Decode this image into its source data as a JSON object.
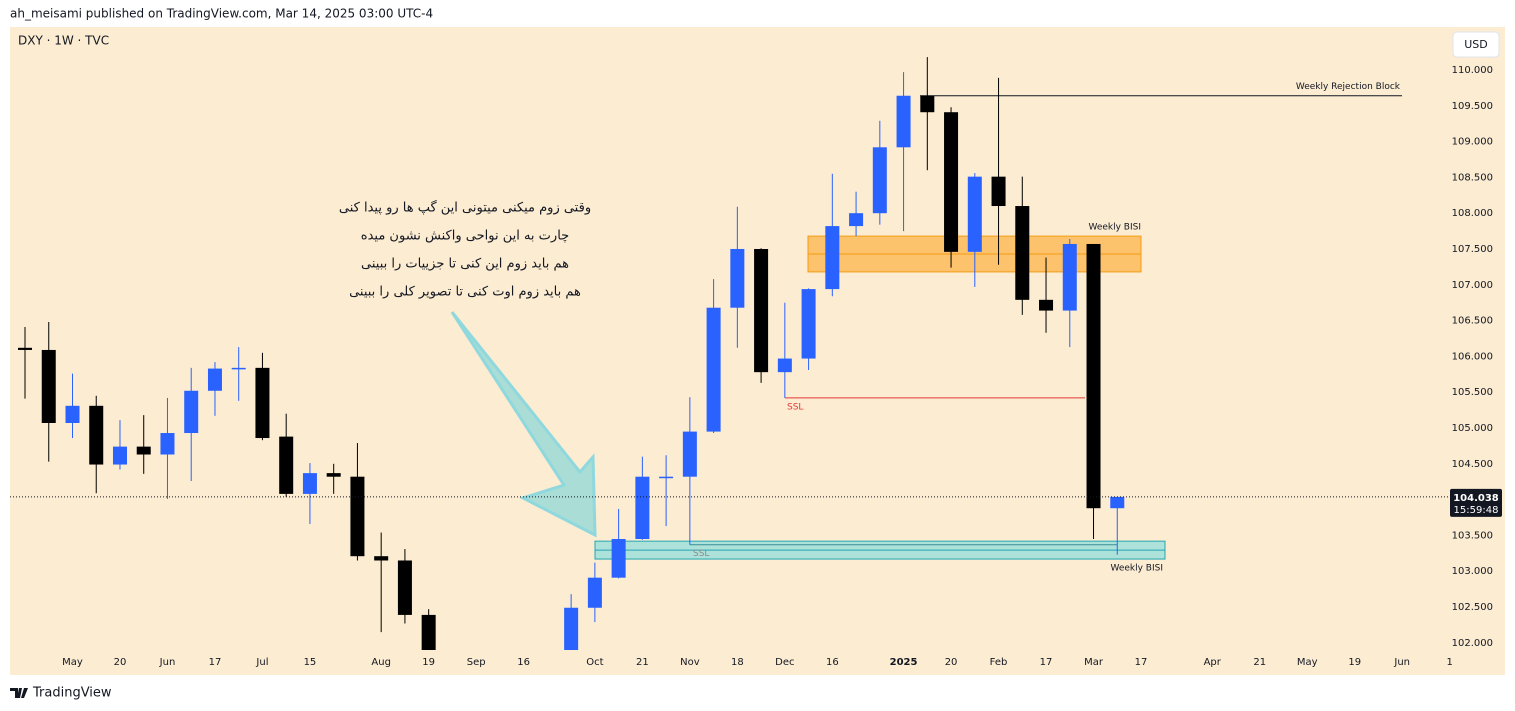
{
  "header": {
    "publisher": "ah_meisami published on TradingView.com, Mar 14, 2025 03:00 UTC-4",
    "symbol": "DXY · 1W · TVC",
    "currency": "USD",
    "brand": "TradingView"
  },
  "chart_data": {
    "type": "candlestick",
    "categories": [
      null,
      null,
      "May",
      null,
      "20",
      null,
      "Jun",
      null,
      "17",
      null,
      "Jul",
      null,
      "15",
      null,
      null,
      "Aug",
      null,
      "19",
      null,
      "Sep",
      null,
      "16",
      null,
      null,
      "Oct",
      null,
      "21",
      null,
      "Nov",
      null,
      "18",
      null,
      "Dec",
      null,
      "16",
      null,
      null,
      "2025",
      null,
      "20",
      null,
      "Feb",
      null,
      "17",
      null,
      "Mar",
      null,
      "17",
      null,
      null,
      "Apr",
      null,
      "21",
      null,
      "May",
      null,
      "19",
      null,
      "Jun",
      null,
      "1"
    ],
    "open": [
      106.12,
      106.09,
      105.07,
      105.31,
      104.49,
      104.74,
      104.63,
      104.93,
      105.52,
      105.83,
      105.84,
      104.88,
      104.08,
      104.37,
      104.32,
      103.21,
      103.15,
      102.39,
      null,
      null,
      null,
      null,
      null,
      101.73,
      102.49,
      102.91,
      103.45,
      104.3,
      104.32,
      104.95,
      106.68,
      107.5,
      105.78,
      105.97,
      106.94,
      107.82,
      108.0,
      108.92,
      109.64,
      109.41,
      107.46,
      108.51,
      108.1,
      106.79,
      106.64,
      107.57,
      103.88,
      null,
      null,
      null,
      null,
      null,
      null,
      null,
      null,
      null,
      null,
      null,
      null,
      null,
      null
    ],
    "high": [
      106.41,
      106.48,
      105.76,
      105.45,
      105.11,
      105.18,
      105.42,
      105.84,
      105.92,
      106.13,
      106.05,
      105.2,
      104.51,
      104.5,
      104.79,
      103.54,
      103.31,
      102.47,
      null,
      null,
      null,
      null,
      null,
      102.68,
      103.12,
      103.87,
      104.6,
      104.62,
      105.43,
      107.08,
      108.09,
      107.51,
      106.75,
      106.95,
      108.55,
      108.3,
      109.29,
      109.97,
      110.18,
      109.48,
      108.56,
      109.89,
      108.51,
      107.38,
      107.64,
      107.57,
      104.04,
      null,
      null,
      null,
      null,
      null,
      null,
      null,
      null,
      null,
      null,
      null,
      null,
      null,
      null
    ],
    "low": [
      105.41,
      104.53,
      104.86,
      104.09,
      104.42,
      104.36,
      104.01,
      104.26,
      105.17,
      105.38,
      104.83,
      104.04,
      103.66,
      104.08,
      103.15,
      102.15,
      102.27,
      101.6,
      null,
      null,
      null,
      null,
      null,
      101.5,
      102.29,
      102.9,
      103.44,
      103.63,
      103.37,
      104.93,
      106.12,
      105.63,
      105.42,
      105.81,
      106.84,
      107.68,
      107.84,
      107.75,
      108.6,
      107.24,
      106.97,
      107.28,
      106.58,
      106.33,
      106.13,
      103.45,
      103.23,
      null,
      null,
      null,
      null,
      null,
      null,
      null,
      null,
      null,
      null,
      null,
      null,
      null,
      null
    ],
    "close": [
      106.09,
      105.07,
      105.31,
      104.49,
      104.74,
      104.63,
      104.93,
      105.52,
      105.83,
      105.84,
      104.86,
      104.08,
      104.37,
      104.32,
      103.21,
      103.15,
      102.39,
      101.8,
      null,
      null,
      null,
      null,
      null,
      102.49,
      102.91,
      103.45,
      104.32,
      104.32,
      104.95,
      106.68,
      107.5,
      105.78,
      105.97,
      106.94,
      107.82,
      108.0,
      108.92,
      109.64,
      109.41,
      107.46,
      108.51,
      108.1,
      106.79,
      106.64,
      107.57,
      103.88,
      104.038,
      null,
      null,
      null,
      null,
      null,
      null,
      null,
      null,
      null,
      null,
      null,
      null,
      null,
      null
    ],
    "colors": {
      "up": "#2962ff",
      "down": "#000000"
    },
    "ylim": [
      101.9,
      110.6
    ],
    "yticks": [
      {
        "value": 102,
        "label": "102.000"
      },
      {
        "value": 102.5,
        "label": "102.500"
      },
      {
        "value": 103,
        "label": "103.000"
      },
      {
        "value": 103.5,
        "label": "103.500"
      },
      {
        "value": 104,
        "label": "104.000"
      },
      {
        "value": 104.5,
        "label": "104.500"
      },
      {
        "value": 105,
        "label": "105.000"
      },
      {
        "value": 105.5,
        "label": "105.500"
      },
      {
        "value": 106,
        "label": "106.000"
      },
      {
        "value": 106.5,
        "label": "106.500"
      },
      {
        "value": 107,
        "label": "107.000"
      },
      {
        "value": 107.5,
        "label": "107.500"
      },
      {
        "value": 108,
        "label": "108.000"
      },
      {
        "value": 108.5,
        "label": "108.500"
      },
      {
        "value": 109,
        "label": "109.000"
      },
      {
        "value": 109.5,
        "label": "109.500"
      },
      {
        "value": 110,
        "label": "110.000"
      }
    ],
    "countdown": "15:59:48",
    "annotations": {
      "rejection_block": {
        "text": "Weekly Rejection Block",
        "price": 109.64
      },
      "bisi_upper": {
        "text": "Weekly BISI",
        "top": 107.68,
        "bottom": 107.18
      },
      "bisi_lower": {
        "text": "Weekly BISI",
        "top": 103.42,
        "bottom": 103.17
      },
      "ssl_red": {
        "text": "SSL",
        "price": 105.42
      },
      "ssl_grey": {
        "text": "SSL",
        "price": 103.37
      },
      "note": [
        "وقتی زوم میکنی میتونی این گپ ها رو پیدا کنی",
        "چارت به این نواحی واکنش نشون میده",
        "هم باید زوم این کنی تا جزییات را ببینی",
        "هم باید زوم اوت کنی تا تصویر کلی را ببینی"
      ]
    }
  }
}
